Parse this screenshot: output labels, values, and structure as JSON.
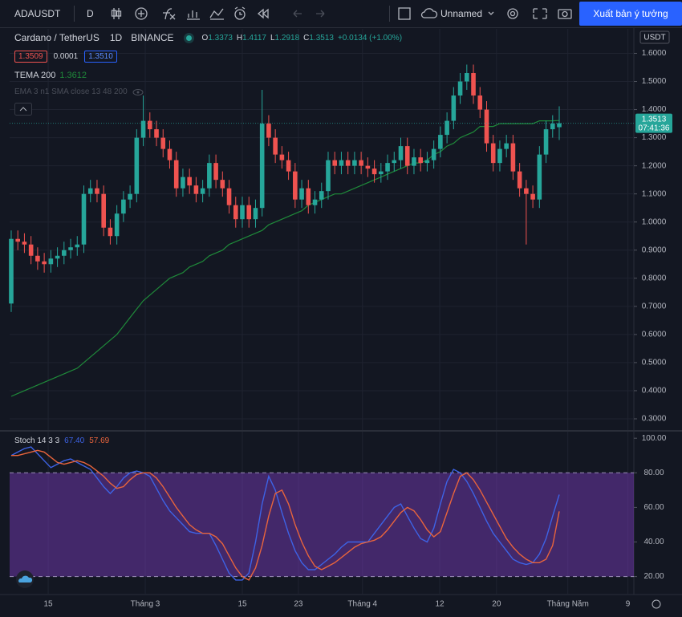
{
  "toolbar": {
    "symbol": "ADAUSDT",
    "interval": "D",
    "layout_name": "Unnamed",
    "publish_button": "Xuất bản ý tưởng"
  },
  "legend": {
    "bid": "1.3509",
    "spread": "0.0001",
    "ask": "1.3510",
    "ohlc_prefixes": [
      "O",
      "H",
      "L",
      "C"
    ],
    "change": "+0.0134 (+1.00%)",
    "ema_text": "EMA 3 n1 SMA close 13 48 200"
  },
  "chart_data": [
    {
      "type": "candlestick",
      "title": "Cardano / TetherUS",
      "interval": "1D",
      "exchange": "BINANCE",
      "y_unit": "USDT",
      "countdown": "07:41:36",
      "up_color": "#26a69a",
      "down_color": "#ef5350",
      "open": [
        0.71,
        0.94,
        0.93,
        0.92,
        0.88,
        0.86,
        0.85,
        0.87,
        0.88,
        0.9,
        0.91,
        0.92,
        1.1,
        1.12,
        1.1,
        0.98,
        0.95,
        1.03,
        1.08,
        1.1,
        1.3,
        1.36,
        1.33,
        1.3,
        1.26,
        1.22,
        1.12,
        1.16,
        1.13,
        1.1,
        1.12,
        1.21,
        1.15,
        1.12,
        1.06,
        1.01,
        1.06,
        1.01,
        1.05,
        1.35,
        1.3,
        1.24,
        1.22,
        1.18,
        1.08,
        1.12,
        1.06,
        1.08,
        1.11,
        1.22,
        1.2,
        1.22,
        1.2,
        1.22,
        1.2,
        1.19,
        1.17,
        1.18,
        1.21,
        1.22,
        1.27,
        1.2,
        1.23,
        1.21,
        1.22,
        1.26,
        1.31,
        1.36,
        1.45,
        1.5,
        1.53,
        1.45,
        1.4,
        1.28,
        1.21,
        1.26,
        1.28,
        1.18,
        1.12,
        1.1,
        1.08,
        1.24,
        1.33,
        1.3373
      ],
      "high": [
        0.97,
        0.97,
        0.96,
        0.95,
        0.91,
        0.89,
        0.9,
        0.91,
        0.93,
        0.94,
        0.95,
        1.13,
        1.15,
        1.15,
        1.13,
        1.01,
        1.06,
        1.11,
        1.13,
        1.33,
        1.45,
        1.39,
        1.36,
        1.33,
        1.29,
        1.25,
        1.19,
        1.19,
        1.16,
        1.15,
        1.24,
        1.24,
        1.18,
        1.15,
        1.09,
        1.09,
        1.09,
        1.08,
        1.47,
        1.38,
        1.33,
        1.27,
        1.25,
        1.21,
        1.15,
        1.15,
        1.11,
        1.14,
        1.25,
        1.25,
        1.25,
        1.25,
        1.25,
        1.25,
        1.23,
        1.22,
        1.21,
        1.24,
        1.25,
        1.3,
        1.3,
        1.26,
        1.26,
        1.25,
        1.29,
        1.34,
        1.39,
        1.48,
        1.53,
        1.56,
        1.56,
        1.48,
        1.43,
        1.31,
        1.29,
        1.31,
        1.31,
        1.21,
        1.15,
        1.13,
        1.27,
        1.36,
        1.38,
        1.4117
      ],
      "low": [
        0.68,
        0.9,
        0.89,
        0.85,
        0.83,
        0.82,
        0.82,
        0.84,
        0.85,
        0.87,
        0.88,
        0.89,
        1.07,
        1.07,
        0.95,
        0.92,
        0.92,
        1.0,
        1.05,
        1.07,
        1.27,
        1.3,
        1.27,
        1.23,
        1.19,
        1.09,
        1.09,
        1.1,
        1.07,
        1.07,
        1.09,
        1.12,
        1.09,
        1.03,
        0.98,
        0.98,
        0.98,
        0.98,
        1.02,
        1.27,
        1.21,
        1.19,
        1.15,
        1.05,
        1.05,
        1.03,
        1.03,
        1.05,
        1.08,
        1.17,
        1.17,
        1.17,
        1.17,
        1.17,
        1.16,
        1.14,
        1.14,
        1.15,
        1.18,
        1.19,
        1.17,
        1.17,
        1.18,
        1.18,
        1.19,
        1.23,
        1.28,
        1.33,
        1.42,
        1.47,
        1.42,
        1.37,
        1.25,
        1.18,
        1.18,
        1.23,
        1.15,
        1.09,
        0.92,
        1.05,
        1.05,
        1.21,
        1.3,
        1.2918
      ],
      "close": [
        0.94,
        0.93,
        0.92,
        0.88,
        0.86,
        0.85,
        0.87,
        0.88,
        0.9,
        0.91,
        0.92,
        1.1,
        1.12,
        1.1,
        0.98,
        0.95,
        1.03,
        1.08,
        1.1,
        1.3,
        1.36,
        1.33,
        1.3,
        1.26,
        1.22,
        1.12,
        1.16,
        1.13,
        1.1,
        1.12,
        1.21,
        1.15,
        1.12,
        1.06,
        1.01,
        1.06,
        1.01,
        1.05,
        1.35,
        1.3,
        1.24,
        1.22,
        1.18,
        1.08,
        1.12,
        1.06,
        1.08,
        1.11,
        1.22,
        1.2,
        1.22,
        1.2,
        1.22,
        1.2,
        1.19,
        1.17,
        1.18,
        1.21,
        1.22,
        1.27,
        1.2,
        1.23,
        1.21,
        1.22,
        1.26,
        1.31,
        1.36,
        1.45,
        1.5,
        1.53,
        1.45,
        1.4,
        1.28,
        1.21,
        1.26,
        1.28,
        1.18,
        1.12,
        1.1,
        1.08,
        1.24,
        1.33,
        1.35,
        1.3513
      ],
      "overlays": [
        {
          "name": "TEMA 200",
          "color": "#1f8a3a",
          "values": [
            0.38,
            0.39,
            0.4,
            0.41,
            0.42,
            0.43,
            0.44,
            0.45,
            0.46,
            0.47,
            0.48,
            0.5,
            0.52,
            0.54,
            0.56,
            0.58,
            0.6,
            0.63,
            0.66,
            0.69,
            0.72,
            0.74,
            0.76,
            0.78,
            0.8,
            0.81,
            0.82,
            0.84,
            0.85,
            0.86,
            0.88,
            0.89,
            0.9,
            0.92,
            0.93,
            0.94,
            0.95,
            0.96,
            0.97,
            0.99,
            1.0,
            1.01,
            1.02,
            1.03,
            1.04,
            1.06,
            1.07,
            1.08,
            1.09,
            1.1,
            1.1,
            1.11,
            1.12,
            1.13,
            1.14,
            1.15,
            1.16,
            1.17,
            1.18,
            1.19,
            1.2,
            1.21,
            1.21,
            1.22,
            1.24,
            1.25,
            1.27,
            1.28,
            1.3,
            1.31,
            1.32,
            1.34,
            1.34,
            1.34,
            1.35,
            1.35,
            1.35,
            1.35,
            1.35,
            1.35,
            1.36,
            1.36,
            1.36,
            1.3612
          ]
        }
      ],
      "xlim": [
        -0.24,
        94.3
      ],
      "xticks": [
        {
          "value": 5.6,
          "label": "15"
        },
        {
          "value": 20.3,
          "label": "Tháng 3"
        },
        {
          "value": 35,
          "label": "15"
        },
        {
          "value": 43.5,
          "label": "23"
        },
        {
          "value": 53.2,
          "label": "Tháng 4"
        },
        {
          "value": 64.9,
          "label": "12"
        },
        {
          "value": 73.5,
          "label": "20"
        },
        {
          "value": 84.3,
          "label": "Tháng Năm"
        },
        {
          "value": 93.4,
          "label": "9"
        }
      ],
      "ylim": [
        0.26,
        1.687
      ],
      "yticks": [
        {
          "value": 1.6,
          "label": "1.6000"
        },
        {
          "value": 1.5,
          "label": "1.5000"
        },
        {
          "value": 1.4,
          "label": "1.4000"
        },
        {
          "value": 1.3,
          "label": "1.3000"
        },
        {
          "value": 1.2,
          "label": "1.2000"
        },
        {
          "value": 1.1,
          "label": "1.1000"
        },
        {
          "value": 1.0,
          "label": "1.0000"
        },
        {
          "value": 0.9,
          "label": "0.9000"
        },
        {
          "value": 0.8,
          "label": "0.8000"
        },
        {
          "value": 0.7,
          "label": "0.7000"
        },
        {
          "value": 0.6,
          "label": "0.6000"
        },
        {
          "value": 0.5,
          "label": "0.5000"
        },
        {
          "value": 0.4,
          "label": "0.4000"
        },
        {
          "value": 0.3,
          "label": "0.3000"
        }
      ],
      "grid": true
    },
    {
      "type": "line",
      "title": "Stoch 14 3 3",
      "series": [
        {
          "color": "#3d63e6",
          "last_label": "67.40",
          "values": [
            90,
            92,
            94,
            95,
            91,
            87,
            83,
            85,
            87,
            88,
            86,
            84,
            82,
            77,
            72,
            68,
            72,
            77,
            80,
            81,
            80,
            78,
            71,
            64,
            58,
            54,
            50,
            46,
            45,
            45,
            45,
            38,
            30,
            22,
            18,
            18,
            22,
            40,
            62,
            78,
            70,
            57,
            45,
            35,
            28,
            24,
            24,
            27,
            30,
            33,
            37,
            40,
            40,
            40,
            40,
            45,
            50,
            55,
            60,
            62,
            55,
            48,
            42,
            40,
            48,
            62,
            75,
            82,
            80,
            75,
            68,
            60,
            52,
            45,
            40,
            35,
            30,
            28,
            27,
            28,
            33,
            42,
            55,
            67.4
          ]
        },
        {
          "color": "#e8643c",
          "values": [
            90,
            90,
            91,
            92,
            93,
            92,
            89,
            86,
            85,
            86,
            87,
            86,
            84,
            81,
            78,
            74,
            71,
            72,
            76,
            79,
            80,
            80,
            77,
            72,
            66,
            60,
            55,
            50,
            47,
            45,
            45,
            43,
            39,
            32,
            25,
            20,
            18,
            25,
            38,
            55,
            68,
            70,
            62,
            50,
            40,
            32,
            26,
            24,
            26,
            28,
            31,
            34,
            37,
            39,
            40,
            41,
            43,
            47,
            52,
            57,
            60,
            58,
            53,
            47,
            43,
            46,
            57,
            68,
            78,
            80,
            76,
            70,
            63,
            56,
            49,
            42,
            37,
            33,
            30,
            28,
            28,
            30,
            38,
            57.69
          ]
        }
      ],
      "ylim": [
        9.6,
        103.8
      ],
      "yticks": [
        {
          "value": 100,
          "label": "100.00"
        },
        {
          "value": 80,
          "label": "80.00"
        },
        {
          "value": 60,
          "label": "60.00"
        },
        {
          "value": 40,
          "label": "40.00"
        },
        {
          "value": 20,
          "label": "20.00"
        }
      ],
      "band": [
        20,
        80
      ],
      "band_color": "#7e3fc4"
    }
  ]
}
